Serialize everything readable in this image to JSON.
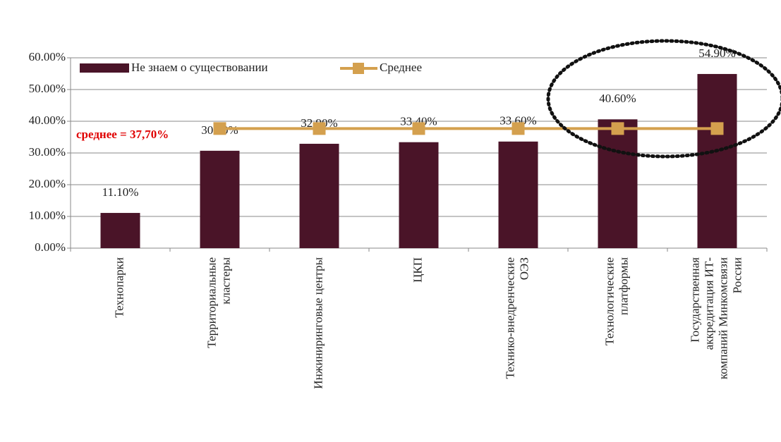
{
  "chart_data": {
    "type": "bar",
    "categories": [
      "Технопарки",
      "Территориальные\nкластеры",
      "Инжиниринговые центры",
      "ЦКП",
      "Технико-внедренческие\nОЭЗ",
      "Технологические\nплатформы",
      "Государственная\nаккредитация ИТ-\nкомпаний Минкомсвязи\nРоссии"
    ],
    "series": [
      {
        "name": "Не знаем о существовании",
        "type": "bar",
        "color": "#4a1428",
        "values": [
          11.1,
          30.7,
          32.9,
          33.4,
          33.6,
          40.6,
          54.9
        ],
        "value_labels": [
          "11.10%",
          "30.70%",
          "32.90%",
          "33.40%",
          "33.60%",
          "40.60%",
          "54.90%"
        ]
      },
      {
        "name": "Среднее",
        "type": "line",
        "color": "#d4a04e",
        "values": [
          null,
          37.7,
          37.7,
          37.7,
          37.7,
          37.7,
          37.7
        ]
      }
    ],
    "annotation": "среднее = 37,70%",
    "ylim": [
      0,
      60
    ],
    "yticks": [
      {
        "value": 0,
        "label": "0.00%"
      },
      {
        "value": 10,
        "label": "10.00%"
      },
      {
        "value": 20,
        "label": "20.00%"
      },
      {
        "value": 30,
        "label": "30.00%"
      },
      {
        "value": 40,
        "label": "40.00%"
      },
      {
        "value": 50,
        "label": "50.00%"
      },
      {
        "value": 60,
        "label": "60.00%"
      }
    ],
    "grid": true
  }
}
